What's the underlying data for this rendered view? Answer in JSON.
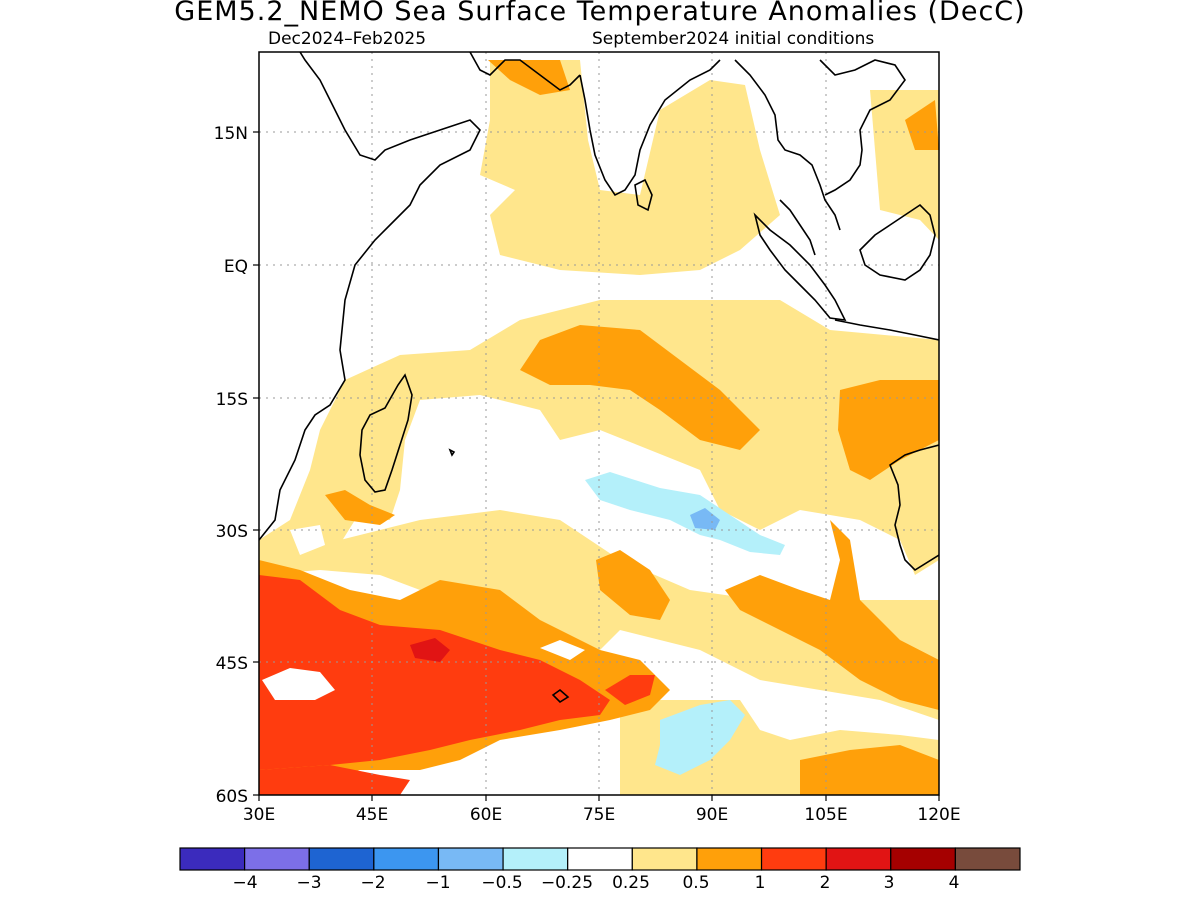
{
  "title": "GEM5.2_NEMO Sea Surface Temperature Anomalies (DecC)",
  "subtitle_left": "Dec2024–Feb2025",
  "subtitle_right": "September2024 initial conditions",
  "map": {
    "lon_range": [
      30,
      120
    ],
    "lat_range": [
      -60,
      24
    ],
    "x_ticks": [
      "30E",
      "45E",
      "60E",
      "75E",
      "90E",
      "105E",
      "120E"
    ],
    "y_ticks": [
      "15N",
      "EQ",
      "15S",
      "30S",
      "45S",
      "60S"
    ],
    "grid": "dotted"
  },
  "legend": {
    "colors": [
      "#3b2bbd",
      "#7c6fe8",
      "#1e64d2",
      "#3c96f0",
      "#78b9f5",
      "#b4f0fa",
      "#ffffff",
      "#ffe68c",
      "#ffa00a",
      "#ff3c0f",
      "#e11414",
      "#a50000",
      "#784b3c"
    ],
    "labels": [
      "−4",
      "−3",
      "−2",
      "−1",
      "−0.5",
      "−0.25",
      "0.25",
      "0.5",
      "1",
      "2",
      "3",
      "4"
    ]
  }
}
